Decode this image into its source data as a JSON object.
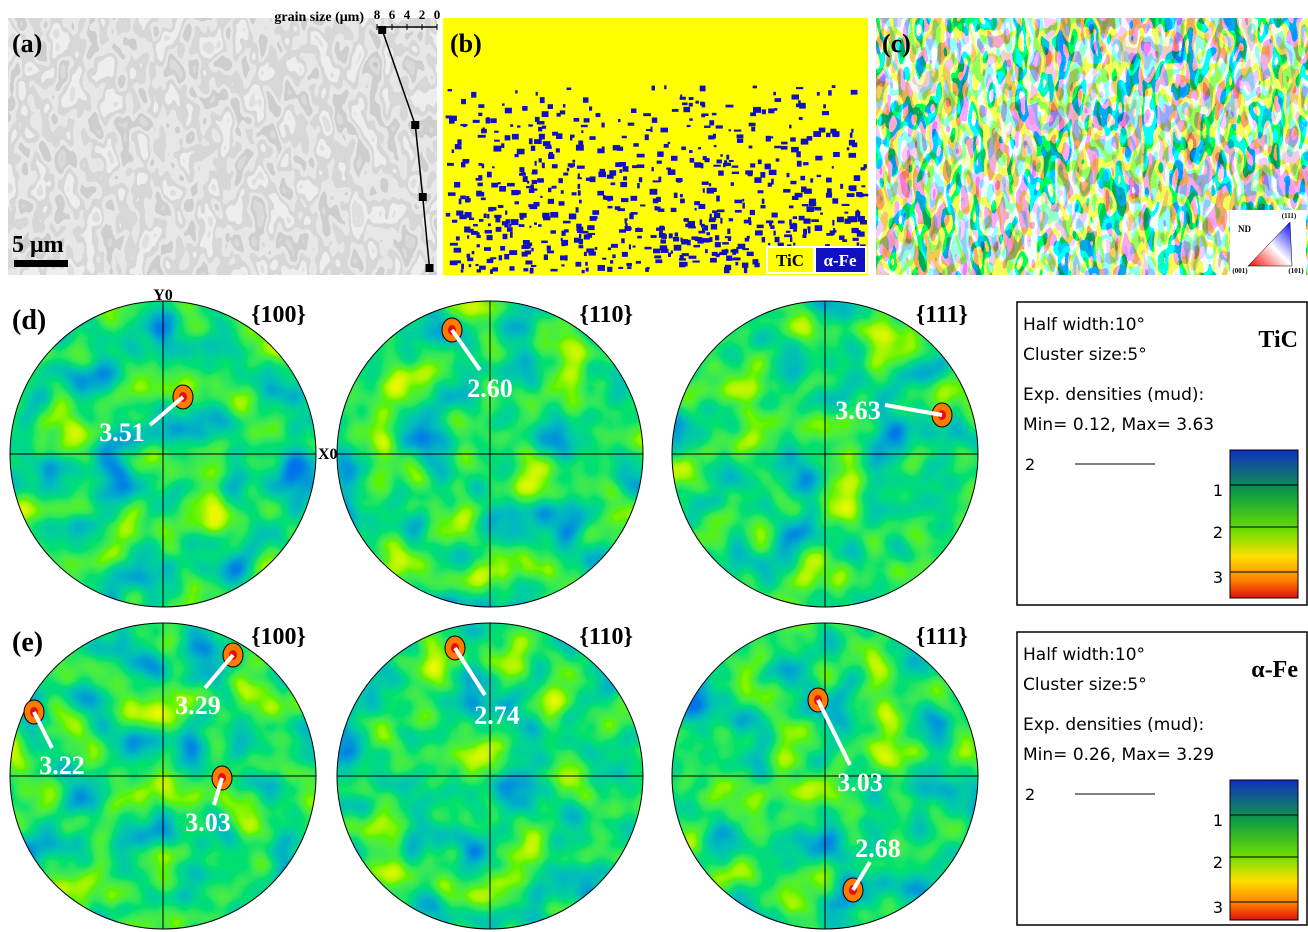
{
  "panel_a": {
    "label": "(a)",
    "scale_bar": "5 μm",
    "grain_size": {
      "title": "grain size (μm)",
      "ticks": [
        8,
        6,
        4,
        2,
        0
      ],
      "profile": [
        7.3,
        2.9,
        1.9,
        1.0
      ]
    }
  },
  "panel_b": {
    "label": "(b)",
    "legend": [
      "TiC",
      "α-Fe"
    ]
  },
  "panel_c": {
    "label": "(c)",
    "key": {
      "axis": "ND",
      "corners": [
        "(111)",
        "(001)",
        "(101)"
      ]
    }
  },
  "pole_figures": [
    {
      "label": "(d)",
      "axes": [
        "Y0",
        "X0"
      ],
      "planes": [
        {
          "name": "{100}",
          "peaks": [
            "3.51"
          ]
        },
        {
          "name": "{110}",
          "peaks": [
            "2.60"
          ]
        },
        {
          "name": "{111}",
          "peaks": [
            "3.63"
          ]
        }
      ]
    },
    {
      "label": "(e)",
      "planes": [
        {
          "name": "{100}",
          "peaks": [
            "3.29",
            "3.22",
            "3.03"
          ]
        },
        {
          "name": "{110}",
          "peaks": [
            "2.74"
          ]
        },
        {
          "name": "{111}",
          "peaks": [
            "3.03",
            "2.68"
          ]
        }
      ]
    }
  ],
  "legends": [
    {
      "lines": [
        "Half width:10°",
        "Cluster size:5°",
        "Exp. densities (mud):",
        "Min= 0.12, Max= 3.63"
      ],
      "phase": "TiC",
      "contour": "2",
      "scale": [
        "1",
        "2",
        "3"
      ]
    },
    {
      "lines": [
        "Half width:10°",
        "Cluster size:5°",
        "Exp. densities (mud):",
        "Min= 0.26, Max= 3.29"
      ],
      "phase": "α-Fe",
      "contour": "2",
      "scale": [
        "1",
        "2",
        "3"
      ]
    }
  ]
}
